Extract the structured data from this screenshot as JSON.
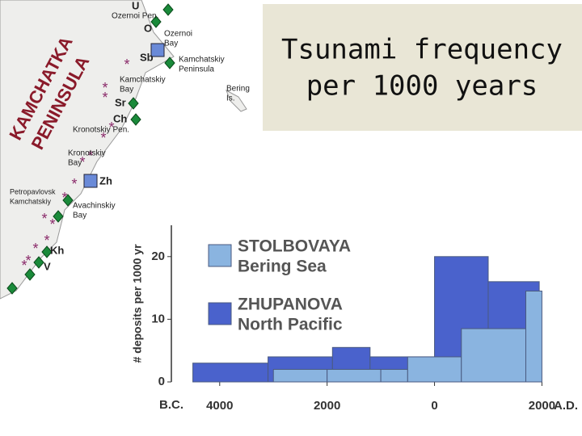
{
  "slide_title": [
    "Tsunami frequency",
    "per 1000 years"
  ],
  "map": {
    "labels": [
      [
        "U"
      ],
      [
        "Ozernoi Pen."
      ],
      [
        "O"
      ],
      [
        "Ozernoi",
        "Bay"
      ],
      [
        "Sb"
      ],
      [
        "Kamchatskiy",
        "Peninsula"
      ],
      [
        "KAMCHATKA",
        "PENINSULA"
      ],
      [
        "Bering",
        "Is."
      ],
      [
        "Kamchatskiy",
        "Bay"
      ],
      [
        "Sr"
      ],
      [
        "Ch"
      ],
      [
        "Kronotskiy Pen."
      ],
      [
        "Kronotskiy",
        "Bay"
      ],
      [
        "Zh"
      ],
      [
        "Petropavlovsk",
        "Kamchatskiy"
      ],
      [
        "Avachinskiy",
        "Bay"
      ],
      [
        "Kh"
      ],
      [
        "V"
      ]
    ]
  },
  "chart_data": {
    "type": "histogram",
    "y_label": "# deposits per 1000 yr",
    "era_labels": [
      "B.C.",
      "A.D."
    ],
    "series": [
      {
        "name": "STOLBOVAYA",
        "region": "Bering Sea",
        "color": "#8ab4e0",
        "bins": [
          -3000,
          -2000,
          -1000,
          -500,
          500,
          1700,
          2000
        ],
        "values": [
          2,
          2,
          2,
          4,
          8.5,
          14.5
        ]
      },
      {
        "name": "ZHUPANOVA",
        "region": "North Pacific",
        "color": "#4a62cc",
        "bins": [
          -4500,
          -3100,
          -1900,
          -1200,
          0,
          1000,
          1950
        ],
        "values": [
          3,
          4,
          5.5,
          4,
          20,
          16
        ]
      }
    ],
    "xlim": [
      -4900,
      2400
    ],
    "xticks": [
      {
        "value": -4000,
        "label": "4000"
      },
      {
        "value": -2000,
        "label": "2000"
      },
      0,
      2000
    ],
    "ylim": [
      0,
      25
    ],
    "yticks": [
      0,
      10,
      20
    ]
  }
}
